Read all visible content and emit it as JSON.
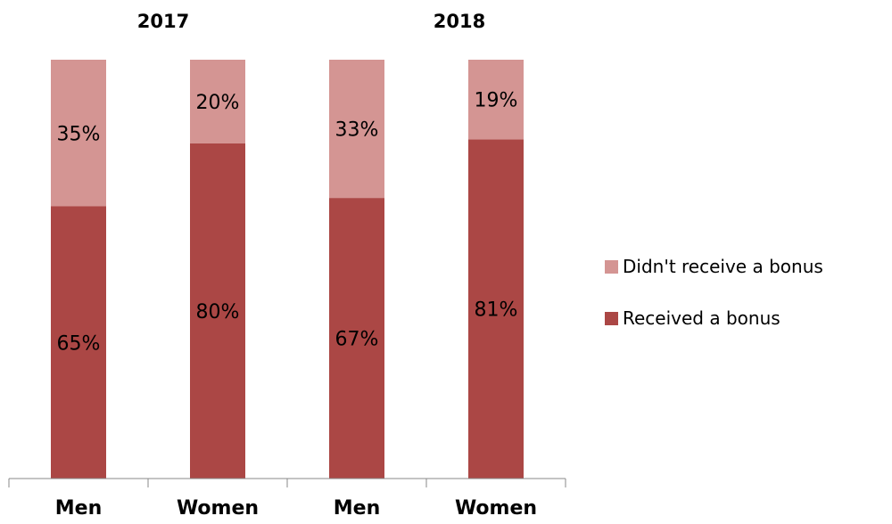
{
  "chart_data": {
    "type": "bar",
    "stacked": true,
    "percent_stacked": true,
    "groups": [
      "2017",
      "2018"
    ],
    "categories": [
      "Men",
      "Women",
      "Men",
      "Women"
    ],
    "category_group": [
      "2017",
      "2017",
      "2018",
      "2018"
    ],
    "series": [
      {
        "name": "Received a bonus",
        "values": [
          65,
          80,
          67,
          81
        ],
        "labels": [
          "65%",
          "80%",
          "67%",
          "81%"
        ],
        "color": "#ab4745"
      },
      {
        "name": "Didn't receive a bonus",
        "values": [
          35,
          20,
          33,
          19
        ],
        "labels": [
          "35%",
          "20%",
          "33%",
          "19%"
        ],
        "color": "#d49593"
      }
    ],
    "ylim": [
      0,
      100
    ],
    "grid": false,
    "legend_position": "right"
  }
}
